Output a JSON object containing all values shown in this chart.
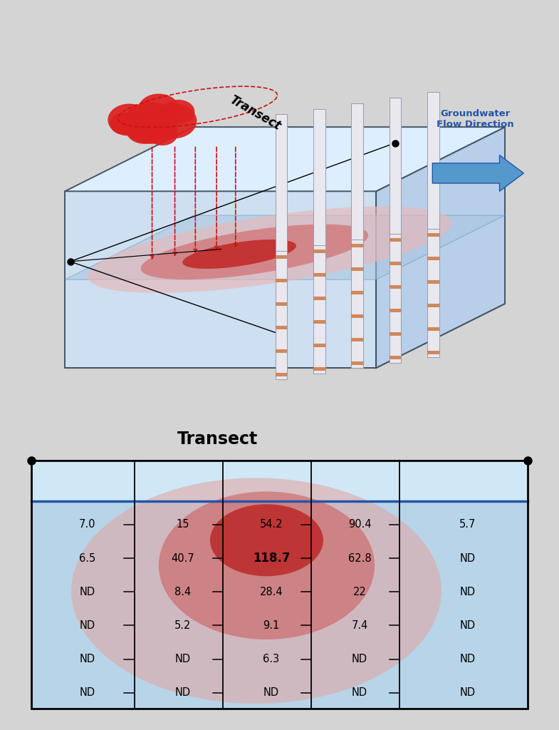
{
  "bg_color": "#d4d4d4",
  "title_transect": "Transect",
  "gw_label": "Groundwater\nFlow Direction",
  "table_data": [
    [
      "7.0",
      "15",
      "54.2",
      "90.4",
      "5.7"
    ],
    [
      "6.5",
      "40.7",
      "118.7",
      "62.8",
      "ND"
    ],
    [
      "ND",
      "8.4",
      "28.4",
      "22",
      "ND"
    ],
    [
      "ND",
      "5.2",
      "9.1",
      "7.4",
      "ND"
    ],
    [
      "ND",
      "ND",
      "6.3",
      "ND",
      "ND"
    ],
    [
      "ND",
      "ND",
      "ND",
      "ND",
      "ND"
    ]
  ],
  "box_front_color": "#cddff0",
  "box_top_color": "#ddeeff",
  "box_right_color": "#b8cfea",
  "box_bottom_color": "#b0c8e0",
  "box_edge_color": "#445566",
  "water_face_color": "#a8c4de",
  "plume_outer": "#e8b8b8",
  "plume_mid": "#cf6060",
  "plume_inner": "#c02020",
  "blue_line": "#2255aa",
  "arrow_fill": "#5599cc",
  "arrow_edge": "#2255aa",
  "gw_text_color": "#2255aa",
  "cloud_color": "#dd2020",
  "well_color": "#e8e8ee",
  "well_edge": "#999aaa",
  "port_color": "#cc7744",
  "red_dash": "#cc1111",
  "above_table_bg": "#d0e8f5",
  "below_table_bg": "#b8d4e8",
  "table_outer_plume": "#e0a8a8",
  "table_mid_plume": "#cc5555",
  "table_inner_plume": "#bb2222",
  "table_border": "#222222",
  "blue_arrow_color": "#2255bb",
  "triangle_color": "#2255bb"
}
